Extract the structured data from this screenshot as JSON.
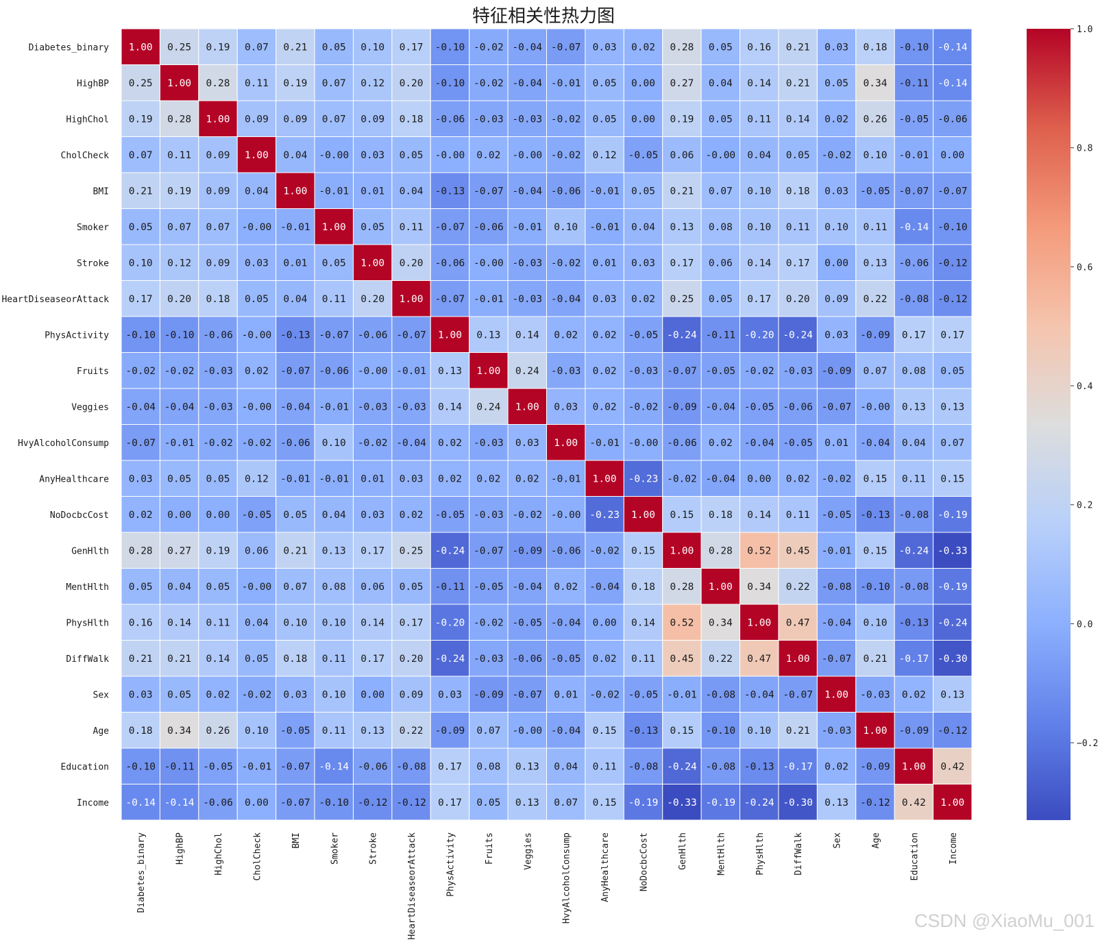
{
  "watermark": "CSDN @XiaoMu_001",
  "chart_data": {
    "type": "heatmap",
    "title": "特征相关性热力图",
    "colormap": "coolwarm",
    "annotation_format": "0.00",
    "labels": [
      "Diabetes_binary",
      "HighBP",
      "HighChol",
      "CholCheck",
      "BMI",
      "Smoker",
      "Stroke",
      "HeartDiseaseorAttack",
      "PhysActivity",
      "Fruits",
      "Veggies",
      "HvyAlcoholConsump",
      "AnyHealthcare",
      "NoDocbcCost",
      "GenHlth",
      "MentHlth",
      "PhysHlth",
      "DiffWalk",
      "Sex",
      "Age",
      "Education",
      "Income"
    ],
    "values": [
      [
        1.0,
        0.25,
        0.19,
        0.07,
        0.21,
        0.05,
        0.1,
        0.17,
        -0.1,
        -0.02,
        -0.04,
        -0.07,
        0.03,
        0.02,
        0.28,
        0.05,
        0.16,
        0.21,
        0.03,
        0.18,
        -0.1,
        -0.14
      ],
      [
        0.25,
        1.0,
        0.28,
        0.11,
        0.19,
        0.07,
        0.12,
        0.2,
        -0.1,
        -0.02,
        -0.04,
        -0.01,
        0.05,
        0.0,
        0.27,
        0.04,
        0.14,
        0.21,
        0.05,
        0.34,
        -0.11,
        -0.14
      ],
      [
        0.19,
        0.28,
        1.0,
        0.09,
        0.09,
        0.07,
        0.09,
        0.18,
        -0.06,
        -0.03,
        -0.03,
        -0.02,
        0.05,
        0.0,
        0.19,
        0.05,
        0.11,
        0.14,
        0.02,
        0.26,
        -0.05,
        -0.06
      ],
      [
        0.07,
        0.11,
        0.09,
        1.0,
        0.04,
        -0.0,
        0.03,
        0.05,
        -0.0,
        0.02,
        -0.0,
        -0.02,
        0.12,
        -0.05,
        0.06,
        -0.0,
        0.04,
        0.05,
        -0.02,
        0.1,
        -0.01,
        0.0
      ],
      [
        0.21,
        0.19,
        0.09,
        0.04,
        1.0,
        -0.01,
        0.01,
        0.04,
        -0.13,
        -0.07,
        -0.04,
        -0.06,
        -0.01,
        0.05,
        0.21,
        0.07,
        0.1,
        0.18,
        0.03,
        -0.05,
        -0.07,
        -0.07
      ],
      [
        0.05,
        0.07,
        0.07,
        -0.0,
        -0.01,
        1.0,
        0.05,
        0.11,
        -0.07,
        -0.06,
        -0.01,
        0.1,
        -0.01,
        0.04,
        0.13,
        0.08,
        0.1,
        0.11,
        0.1,
        0.11,
        -0.14,
        -0.1
      ],
      [
        0.1,
        0.12,
        0.09,
        0.03,
        0.01,
        0.05,
        1.0,
        0.2,
        -0.06,
        -0.0,
        -0.03,
        -0.02,
        0.01,
        0.03,
        0.17,
        0.06,
        0.14,
        0.17,
        0.0,
        0.13,
        -0.06,
        -0.12
      ],
      [
        0.17,
        0.2,
        0.18,
        0.05,
        0.04,
        0.11,
        0.2,
        1.0,
        -0.07,
        -0.01,
        -0.03,
        -0.04,
        0.03,
        0.02,
        0.25,
        0.05,
        0.17,
        0.2,
        0.09,
        0.22,
        -0.08,
        -0.12
      ],
      [
        -0.1,
        -0.1,
        -0.06,
        -0.0,
        -0.13,
        -0.07,
        -0.06,
        -0.07,
        1.0,
        0.13,
        0.14,
        0.02,
        0.02,
        -0.05,
        -0.24,
        -0.11,
        -0.2,
        -0.24,
        0.03,
        -0.09,
        0.17,
        0.17
      ],
      [
        -0.02,
        -0.02,
        -0.03,
        0.02,
        -0.07,
        -0.06,
        -0.0,
        -0.01,
        0.13,
        1.0,
        0.24,
        -0.03,
        0.02,
        -0.03,
        -0.07,
        -0.05,
        -0.02,
        -0.03,
        -0.09,
        0.07,
        0.08,
        0.05
      ],
      [
        -0.04,
        -0.04,
        -0.03,
        -0.0,
        -0.04,
        -0.01,
        -0.03,
        -0.03,
        0.14,
        0.24,
        1.0,
        0.03,
        0.02,
        -0.02,
        -0.09,
        -0.04,
        -0.05,
        -0.06,
        -0.07,
        -0.0,
        0.13,
        0.13
      ],
      [
        -0.07,
        -0.01,
        -0.02,
        -0.02,
        -0.06,
        0.1,
        -0.02,
        -0.04,
        0.02,
        -0.03,
        0.03,
        1.0,
        -0.01,
        -0.0,
        -0.06,
        0.02,
        -0.04,
        -0.05,
        0.01,
        -0.04,
        0.04,
        0.07
      ],
      [
        0.03,
        0.05,
        0.05,
        0.12,
        -0.01,
        -0.01,
        0.01,
        0.03,
        0.02,
        0.02,
        0.02,
        -0.01,
        1.0,
        -0.23,
        -0.02,
        -0.04,
        0.0,
        0.02,
        -0.02,
        0.15,
        0.11,
        0.15
      ],
      [
        0.02,
        0.0,
        0.0,
        -0.05,
        0.05,
        0.04,
        0.03,
        0.02,
        -0.05,
        -0.03,
        -0.02,
        -0.0,
        -0.23,
        1.0,
        0.15,
        0.18,
        0.14,
        0.11,
        -0.05,
        -0.13,
        -0.08,
        -0.19
      ],
      [
        0.28,
        0.27,
        0.19,
        0.06,
        0.21,
        0.13,
        0.17,
        0.25,
        -0.24,
        -0.07,
        -0.09,
        -0.06,
        -0.02,
        0.15,
        1.0,
        0.28,
        0.52,
        0.45,
        -0.01,
        0.15,
        -0.24,
        -0.33
      ],
      [
        0.05,
        0.04,
        0.05,
        -0.0,
        0.07,
        0.08,
        0.06,
        0.05,
        -0.11,
        -0.05,
        -0.04,
        0.02,
        -0.04,
        0.18,
        0.28,
        1.0,
        0.34,
        0.22,
        -0.08,
        -0.1,
        -0.08,
        -0.19
      ],
      [
        0.16,
        0.14,
        0.11,
        0.04,
        0.1,
        0.1,
        0.14,
        0.17,
        -0.2,
        -0.02,
        -0.05,
        -0.04,
        0.0,
        0.14,
        0.52,
        0.34,
        1.0,
        0.47,
        -0.04,
        0.1,
        -0.13,
        -0.24
      ],
      [
        0.21,
        0.21,
        0.14,
        0.05,
        0.18,
        0.11,
        0.17,
        0.2,
        -0.24,
        -0.03,
        -0.06,
        -0.05,
        0.02,
        0.11,
        0.45,
        0.22,
        0.47,
        1.0,
        -0.07,
        0.21,
        -0.17,
        -0.3
      ],
      [
        0.03,
        0.05,
        0.02,
        -0.02,
        0.03,
        0.1,
        0.0,
        0.09,
        0.03,
        -0.09,
        -0.07,
        0.01,
        -0.02,
        -0.05,
        -0.01,
        -0.08,
        -0.04,
        -0.07,
        1.0,
        -0.03,
        0.02,
        0.13
      ],
      [
        0.18,
        0.34,
        0.26,
        0.1,
        -0.05,
        0.11,
        0.13,
        0.22,
        -0.09,
        0.07,
        -0.0,
        -0.04,
        0.15,
        -0.13,
        0.15,
        -0.1,
        0.1,
        0.21,
        -0.03,
        1.0,
        -0.09,
        -0.12
      ],
      [
        -0.1,
        -0.11,
        -0.05,
        -0.01,
        -0.07,
        -0.14,
        -0.06,
        -0.08,
        0.17,
        0.08,
        0.13,
        0.04,
        0.11,
        -0.08,
        -0.24,
        -0.08,
        -0.13,
        -0.17,
        0.02,
        -0.09,
        1.0,
        0.42
      ],
      [
        -0.14,
        -0.14,
        -0.06,
        0.0,
        -0.07,
        -0.1,
        -0.12,
        -0.12,
        0.17,
        0.05,
        0.13,
        0.07,
        0.15,
        -0.19,
        -0.33,
        -0.19,
        -0.24,
        -0.3,
        0.13,
        -0.12,
        0.42,
        1.0
      ]
    ],
    "vmin": -0.33,
    "vmax": 1.0,
    "colorbar_ticks": [
      -0.2,
      0.0,
      0.2,
      0.4,
      0.6,
      0.8,
      1.0
    ],
    "colorbar_tick_labels": [
      "−0.2",
      "0.0",
      "0.2",
      "0.4",
      "0.6",
      "0.8",
      "1.0"
    ]
  }
}
